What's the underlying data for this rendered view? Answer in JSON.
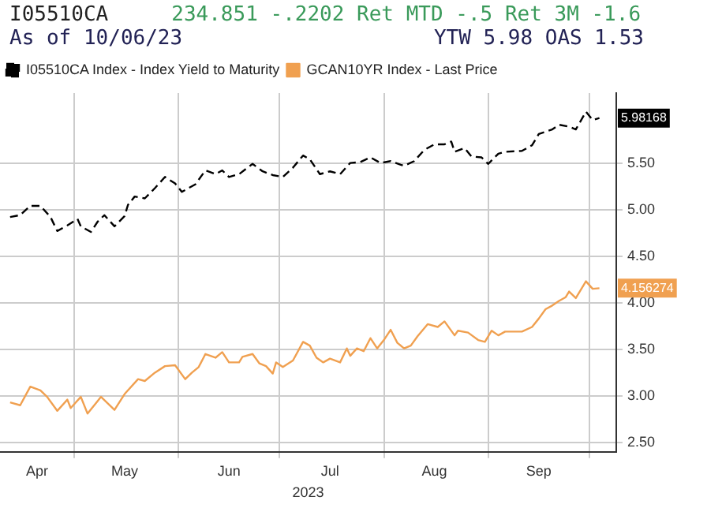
{
  "chart_data": {
    "type": "line",
    "title": "I05510CA",
    "annotations": [
      "234.851 -.2202 Ret MTD -.5 Ret 3M -1.6",
      "As of 10/06/23",
      "YTW 5.98 OAS 1.53"
    ],
    "xlabel": "2023",
    "xlim": [
      "2023-04-09",
      "2023-10-09"
    ],
    "xticks": [
      {
        "value": "2023-04-20",
        "label": "Apr"
      },
      {
        "value": "2023-05-01",
        "label": null
      },
      {
        "value": "2023-05-16",
        "label": "May"
      },
      {
        "value": "2023-06-01",
        "label": null
      },
      {
        "value": "2023-06-16",
        "label": "Jun"
      },
      {
        "value": "2023-07-01",
        "label": null
      },
      {
        "value": "2023-07-16",
        "label": "Jul"
      },
      {
        "value": "2023-08-01",
        "label": null
      },
      {
        "value": "2023-08-16",
        "label": "Aug"
      },
      {
        "value": "2023-09-01",
        "label": null
      },
      {
        "value": "2023-09-16",
        "label": "Sep"
      },
      {
        "value": "2023-10-01",
        "label": null
      }
    ],
    "ylim": [
      2.4,
      6.25
    ],
    "yticks": [
      {
        "value": 2.5,
        "label": "2.50"
      },
      {
        "value": 3,
        "label": "3.00"
      },
      {
        "value": 3.5,
        "label": "3.50"
      },
      {
        "value": 4,
        "label": "4.00"
      },
      {
        "value": 4.5,
        "label": "4.50"
      },
      {
        "value": 5,
        "label": "5.00"
      },
      {
        "value": 5.5,
        "label": "5.50"
      }
    ],
    "grid": true,
    "legend": "top left",
    "marker": "none",
    "series": [
      {
        "name": "I05510CA Index - Index Yield to Maturity",
        "color": "#000000",
        "line_style": "dashed",
        "x": [
          "2023-04-12",
          "2023-04-15",
          "2023-04-18",
          "2023-04-21",
          "2023-04-24",
          "2023-04-26",
          "2023-04-29",
          "2023-05-02",
          "2023-05-03",
          "2023-05-06",
          "2023-05-08",
          "2023-05-10",
          "2023-05-13",
          "2023-05-16",
          "2023-05-17",
          "2023-05-19",
          "2023-05-22",
          "2023-05-25",
          "2023-05-28",
          "2023-05-31",
          "2023-06-02",
          "2023-06-04",
          "2023-06-06",
          "2023-06-09",
          "2023-06-12",
          "2023-06-14",
          "2023-06-16",
          "2023-06-19",
          "2023-06-23",
          "2023-06-26",
          "2023-06-29",
          "2023-07-02",
          "2023-07-05",
          "2023-07-08",
          "2023-07-10",
          "2023-07-13",
          "2023-07-16",
          "2023-07-19",
          "2023-07-22",
          "2023-07-25",
          "2023-07-28",
          "2023-07-31",
          "2023-08-03",
          "2023-08-06",
          "2023-08-07",
          "2023-08-10",
          "2023-08-13",
          "2023-08-16",
          "2023-08-19",
          "2023-08-21",
          "2023-08-22",
          "2023-08-25",
          "2023-08-27",
          "2023-08-30",
          "2023-09-01",
          "2023-09-04",
          "2023-09-06",
          "2023-09-11",
          "2023-09-14",
          "2023-09-16",
          "2023-09-20",
          "2023-09-22",
          "2023-09-25",
          "2023-09-27",
          "2023-09-30",
          "2023-10-02",
          "2023-10-04"
        ],
        "values": [
          4.92,
          4.94,
          5.04,
          5.04,
          4.92,
          4.77,
          4.83,
          4.9,
          4.82,
          4.76,
          4.87,
          4.94,
          4.82,
          4.93,
          5.05,
          5.14,
          5.12,
          5.23,
          5.35,
          5.28,
          5.19,
          5.23,
          5.27,
          5.42,
          5.38,
          5.42,
          5.35,
          5.38,
          5.49,
          5.41,
          5.37,
          5.35,
          5.45,
          5.58,
          5.54,
          5.38,
          5.41,
          5.38,
          5.5,
          5.51,
          5.56,
          5.5,
          5.52,
          5.48,
          5.47,
          5.52,
          5.64,
          5.7,
          5.7,
          5.73,
          5.62,
          5.66,
          5.57,
          5.56,
          5.49,
          5.6,
          5.62,
          5.63,
          5.69,
          5.81,
          5.86,
          5.91,
          5.89,
          5.86,
          6.05,
          5.96,
          5.98168
        ],
        "value_labels": [
          null,
          null,
          null,
          null,
          null,
          null,
          null,
          null,
          null,
          null,
          null,
          null,
          null,
          null,
          null,
          null,
          null,
          null,
          null,
          null,
          null,
          null,
          null,
          null,
          null,
          null,
          null,
          null,
          null,
          null,
          null,
          null,
          null,
          null,
          null,
          null,
          null,
          null,
          null,
          null,
          null,
          null,
          null,
          null,
          null,
          null,
          null,
          null,
          null,
          null,
          null,
          null,
          null,
          null,
          null,
          null,
          null,
          null,
          null,
          null,
          null,
          null,
          null,
          null,
          null,
          null,
          "5.98168"
        ]
      },
      {
        "name": "GCAN10YR Index - Last Price",
        "color": "#f0a050",
        "x": [
          "2023-04-12",
          "2023-04-15",
          "2023-04-18",
          "2023-04-21",
          "2023-04-23",
          "2023-04-26",
          "2023-04-29",
          "2023-04-30",
          "2023-05-03",
          "2023-05-05",
          "2023-05-09",
          "2023-05-13",
          "2023-05-16",
          "2023-05-20",
          "2023-05-22",
          "2023-05-25",
          "2023-05-28",
          "2023-05-31",
          "2023-06-03",
          "2023-06-05",
          "2023-06-07",
          "2023-06-09",
          "2023-06-12",
          "2023-06-14",
          "2023-06-16",
          "2023-06-19",
          "2023-06-20",
          "2023-06-23",
          "2023-06-25",
          "2023-06-27",
          "2023-06-29",
          "2023-06-30",
          "2023-07-02",
          "2023-07-05",
          "2023-07-08",
          "2023-07-10",
          "2023-07-12",
          "2023-07-14",
          "2023-07-16",
          "2023-07-19",
          "2023-07-21",
          "2023-07-22",
          "2023-07-24",
          "2023-07-26",
          "2023-07-28",
          "2023-07-30",
          "2023-08-01",
          "2023-08-03",
          "2023-08-05",
          "2023-08-07",
          "2023-08-09",
          "2023-08-11",
          "2023-08-14",
          "2023-08-17",
          "2023-08-19",
          "2023-08-22",
          "2023-08-23",
          "2023-08-26",
          "2023-08-29",
          "2023-08-31",
          "2023-09-02",
          "2023-09-04",
          "2023-09-06",
          "2023-09-11",
          "2023-09-14",
          "2023-09-16",
          "2023-09-18",
          "2023-09-20",
          "2023-09-22",
          "2023-09-24",
          "2023-09-25",
          "2023-09-27",
          "2023-09-30",
          "2023-10-02",
          "2023-10-04"
        ],
        "values": [
          2.93,
          2.9,
          3.1,
          3.06,
          2.99,
          2.84,
          2.96,
          2.87,
          2.99,
          2.81,
          2.99,
          2.85,
          3.02,
          3.18,
          3.16,
          3.25,
          3.32,
          3.33,
          3.18,
          3.25,
          3.31,
          3.45,
          3.41,
          3.47,
          3.36,
          3.36,
          3.42,
          3.45,
          3.35,
          3.32,
          3.24,
          3.36,
          3.31,
          3.38,
          3.58,
          3.54,
          3.41,
          3.36,
          3.4,
          3.36,
          3.51,
          3.43,
          3.51,
          3.48,
          3.62,
          3.51,
          3.6,
          3.71,
          3.57,
          3.51,
          3.54,
          3.64,
          3.77,
          3.74,
          3.8,
          3.65,
          3.7,
          3.68,
          3.6,
          3.58,
          3.7,
          3.65,
          3.69,
          3.69,
          3.74,
          3.83,
          3.93,
          3.97,
          4.02,
          4.06,
          4.12,
          4.05,
          4.23,
          4.15,
          4.156274
        ],
        "value_labels": [
          null,
          null,
          null,
          null,
          null,
          null,
          null,
          null,
          null,
          null,
          null,
          null,
          null,
          null,
          null,
          null,
          null,
          null,
          null,
          null,
          null,
          null,
          null,
          null,
          null,
          null,
          null,
          null,
          null,
          null,
          null,
          null,
          null,
          null,
          null,
          null,
          null,
          null,
          null,
          null,
          null,
          null,
          null,
          null,
          null,
          null,
          null,
          null,
          null,
          null,
          null,
          null,
          null,
          null,
          null,
          null,
          null,
          null,
          null,
          null,
          null,
          null,
          null,
          null,
          null,
          null,
          null,
          null,
          null,
          null,
          null,
          null,
          null,
          null,
          "4.156274"
        ]
      }
    ]
  }
}
